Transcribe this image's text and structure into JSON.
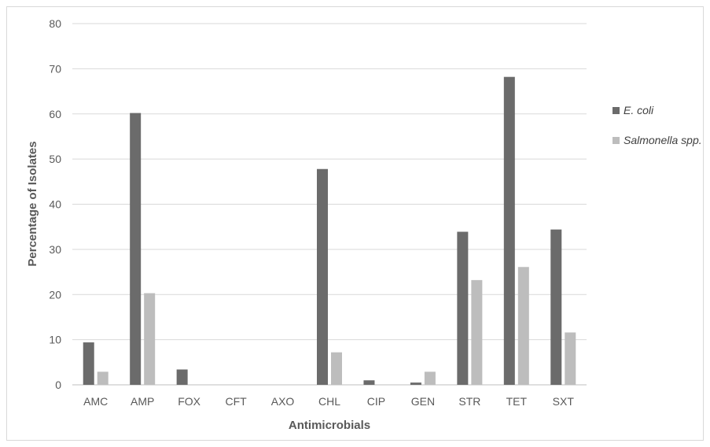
{
  "chart_data": {
    "type": "bar",
    "xlabel": "Antimicrobials",
    "ylabel": "Percentage of Isolates",
    "ylim": [
      0,
      80
    ],
    "yticks": [
      0,
      10,
      20,
      30,
      40,
      50,
      60,
      70,
      80
    ],
    "grid": true,
    "legend_position": "right",
    "categories": [
      "AMC",
      "AMP",
      "FOX",
      "CFT",
      "AXO",
      "CHL",
      "CIP",
      "GEN",
      "STR",
      "TET",
      "SXT"
    ],
    "series": [
      {
        "name": "E. coli",
        "color": "#6b6b6b",
        "values": [
          9.4,
          60.2,
          3.4,
          0,
          0,
          47.8,
          1.0,
          0.5,
          33.9,
          68.2,
          34.4
        ]
      },
      {
        "name": "Salmonella spp.",
        "color": "#bdbdbd",
        "values": [
          2.9,
          20.3,
          0,
          0,
          0,
          7.2,
          0,
          2.9,
          23.2,
          26.1,
          11.6
        ]
      }
    ]
  }
}
